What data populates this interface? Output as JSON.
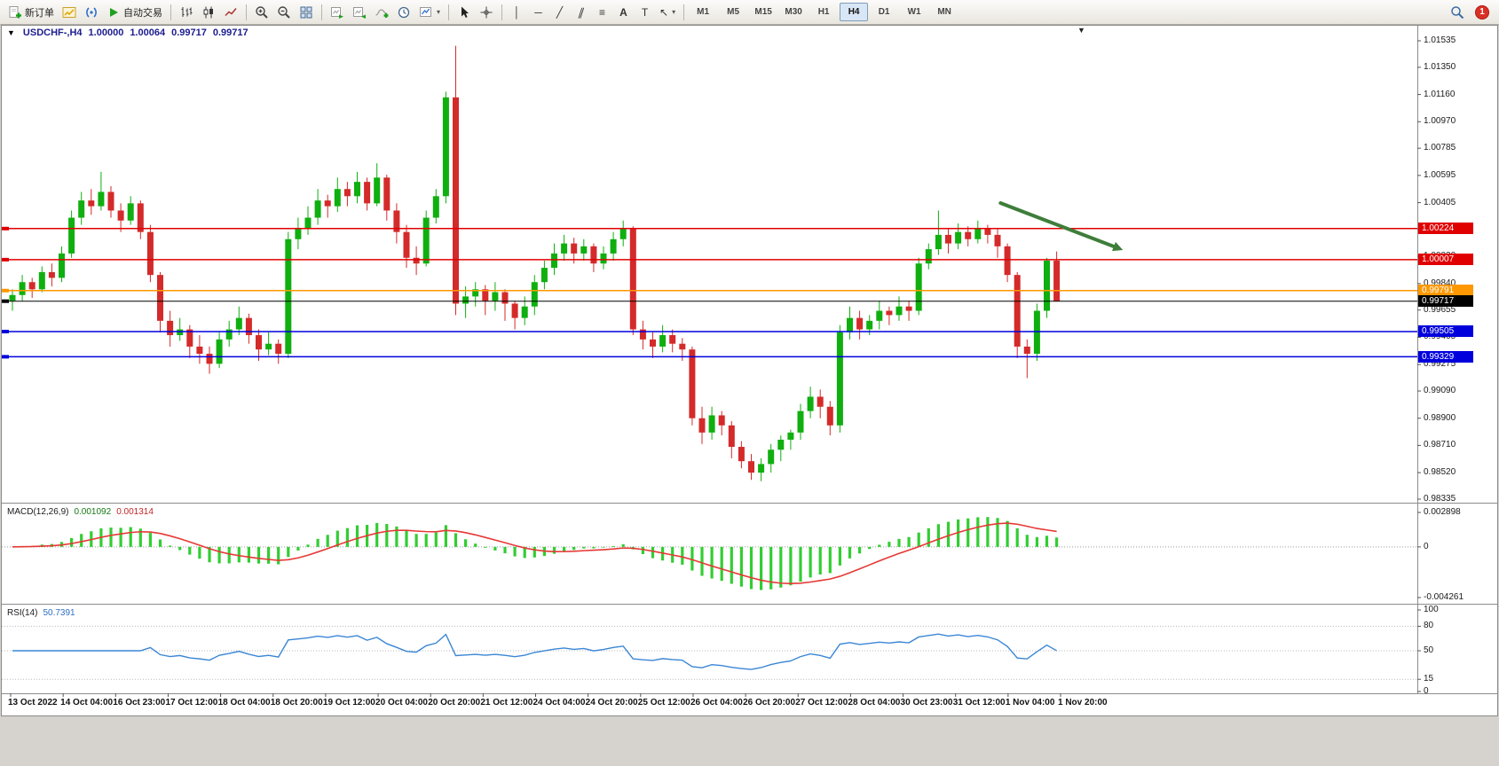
{
  "toolbar": {
    "new_order_label": "新订单",
    "auto_trading_label": "自动交易",
    "timeframes": [
      "M1",
      "M5",
      "M15",
      "M30",
      "H1",
      "H4",
      "D1",
      "W1",
      "MN"
    ],
    "active_timeframe": "H4",
    "notification_count": "1",
    "icons": [
      "new-order",
      "chart",
      "market-watch",
      "auto-trading",
      "bar-chart",
      "candlestick-chart",
      "line-chart",
      "zoom-in",
      "zoom-out",
      "tile-windows",
      "auto-scroll",
      "chart-shift",
      "indicators",
      "periods",
      "templates",
      "cursor",
      "crosshair",
      "vertical-line",
      "horizontal-line",
      "trendline",
      "equidistant-channel",
      "fibonacci",
      "text",
      "text-label",
      "arrows",
      "search",
      "notifications"
    ]
  },
  "chart": {
    "title": {
      "symbol_period": "USDCHF-,H4",
      "open": "1.00000",
      "high": "1.00064",
      "low": "0.99717",
      "close": "0.99717"
    },
    "macd_label": "MACD(12,26,9)",
    "macd_value_main": "0.001092",
    "macd_value_signal": "0.001314",
    "rsi_label": "RSI(14)",
    "rsi_value": "50.7391",
    "one_click_glyph": "▼",
    "shift_marker_glyph": "▼"
  },
  "chart_data": {
    "type": "candlestick",
    "symbol": "USDCHF-",
    "period": "H4",
    "x_labels": [
      "13 Oct 2022",
      "14 Oct 04:00",
      "16 Oct 23:00",
      "17 Oct 12:00",
      "18 Oct 04:00",
      "18 Oct 20:00",
      "19 Oct 12:00",
      "20 Oct 04:00",
      "20 Oct 20:00",
      "21 Oct 12:00",
      "24 Oct 04:00",
      "24 Oct 20:00",
      "25 Oct 12:00",
      "26 Oct 04:00",
      "26 Oct 20:00",
      "27 Oct 12:00",
      "28 Oct 04:00",
      "30 Oct 23:00",
      "31 Oct 12:00",
      "1 Nov 04:00",
      "1 Nov 20:00"
    ],
    "price_axis_ticks": [
      "1.01535",
      "1.01350",
      "1.01160",
      "1.00970",
      "1.00785",
      "1.00595",
      "1.00405",
      "1.00220",
      "1.00030",
      "0.99840",
      "0.99655",
      "0.99465",
      "0.99275",
      "0.99090",
      "0.98900",
      "0.98710",
      "0.98520",
      "0.98335"
    ],
    "ohlc": [
      [
        0.9972,
        0.998,
        0.9965,
        0.9976
      ],
      [
        0.9976,
        0.999,
        0.9972,
        0.9985
      ],
      [
        0.9985,
        0.9988,
        0.9974,
        0.998
      ],
      [
        0.998,
        0.9996,
        0.9978,
        0.9992
      ],
      [
        0.9992,
        0.9998,
        0.9982,
        0.9988
      ],
      [
        0.9988,
        1.001,
        0.9985,
        1.0005
      ],
      [
        1.0005,
        1.0035,
        1.0002,
        1.003
      ],
      [
        1.003,
        1.0048,
        1.0025,
        1.0042
      ],
      [
        1.0042,
        1.005,
        1.0032,
        1.0038
      ],
      [
        1.0038,
        1.0062,
        1.0035,
        1.0048
      ],
      [
        1.0048,
        1.0052,
        1.003,
        1.0035
      ],
      [
        1.0035,
        1.004,
        1.002,
        1.0028
      ],
      [
        1.0028,
        1.0045,
        1.0025,
        1.004
      ],
      [
        1.004,
        1.0042,
        1.0015,
        1.002
      ],
      [
        1.002,
        1.0025,
        0.9985,
        0.999
      ],
      [
        0.999,
        0.9992,
        0.995,
        0.9958
      ],
      [
        0.9958,
        0.9965,
        0.994,
        0.9948
      ],
      [
        0.9948,
        0.996,
        0.9944,
        0.9952
      ],
      [
        0.9952,
        0.9955,
        0.9932,
        0.994
      ],
      [
        0.994,
        0.9948,
        0.9928,
        0.9935
      ],
      [
        0.9935,
        0.994,
        0.9921,
        0.9928
      ],
      [
        0.9928,
        0.995,
        0.9925,
        0.9945
      ],
      [
        0.9945,
        0.9958,
        0.994,
        0.9952
      ],
      [
        0.9952,
        0.9968,
        0.9948,
        0.996
      ],
      [
        0.996,
        0.9963,
        0.9942,
        0.9948
      ],
      [
        0.9948,
        0.9952,
        0.993,
        0.9938
      ],
      [
        0.9938,
        0.995,
        0.9934,
        0.9942
      ],
      [
        0.9942,
        0.9945,
        0.9928,
        0.9935
      ],
      [
        0.9935,
        1.002,
        0.9932,
        1.0015
      ],
      [
        1.0015,
        1.003,
        1.0008,
        1.0022
      ],
      [
        1.0022,
        1.0038,
        1.0018,
        1.003
      ],
      [
        1.003,
        1.005,
        1.0025,
        1.0042
      ],
      [
        1.0042,
        1.0046,
        1.003,
        1.0038
      ],
      [
        1.0038,
        1.0058,
        1.0034,
        1.005
      ],
      [
        1.005,
        1.0055,
        1.0038,
        1.0045
      ],
      [
        1.0045,
        1.0062,
        1.004,
        1.0055
      ],
      [
        1.0055,
        1.0058,
        1.0035,
        1.004
      ],
      [
        1.004,
        1.0068,
        1.0038,
        1.0058
      ],
      [
        1.0058,
        1.006,
        1.0028,
        1.0035
      ],
      [
        1.0035,
        1.004,
        1.0012,
        1.002
      ],
      [
        1.002,
        1.0025,
        0.9995,
        1.0002
      ],
      [
        1.0002,
        1.001,
        0.999,
        0.9998
      ],
      [
        0.9998,
        1.0035,
        0.9996,
        1.003
      ],
      [
        1.003,
        1.005,
        1.0026,
        1.0045
      ],
      [
        1.0045,
        1.0118,
        1.004,
        1.0114
      ],
      [
        1.0114,
        1.015,
        0.9962,
        0.997
      ],
      [
        0.997,
        0.9982,
        0.996,
        0.9975
      ],
      [
        0.9975,
        0.9985,
        0.9968,
        0.998
      ],
      [
        0.998,
        0.9983,
        0.9962,
        0.9972
      ],
      [
        0.9972,
        0.9985,
        0.9965,
        0.9978
      ],
      [
        0.9978,
        0.998,
        0.9958,
        0.997
      ],
      [
        0.997,
        0.9972,
        0.9952,
        0.996
      ],
      [
        0.996,
        0.9975,
        0.9955,
        0.9968
      ],
      [
        0.9968,
        0.999,
        0.9962,
        0.9985
      ],
      [
        0.9985,
        1.0,
        0.998,
        0.9995
      ],
      [
        0.9995,
        1.0012,
        0.999,
        1.0005
      ],
      [
        1.0005,
        1.0018,
        1.0,
        1.0012
      ],
      [
        1.0012,
        1.0016,
        0.9998,
        1.0005
      ],
      [
        1.0005,
        1.0015,
        1.0,
        1.001
      ],
      [
        1.001,
        1.0012,
        0.9992,
        0.9998
      ],
      [
        0.9998,
        1.001,
        0.9994,
        1.0005
      ],
      [
        1.0005,
        1.002,
        1.0,
        1.0015
      ],
      [
        1.0015,
        1.0028,
        1.001,
        1.0022
      ],
      [
        1.0022,
        1.0024,
        0.9948,
        0.9952
      ],
      [
        0.9952,
        0.9958,
        0.9938,
        0.9945
      ],
      [
        0.9945,
        0.995,
        0.9932,
        0.994
      ],
      [
        0.994,
        0.9955,
        0.9936,
        0.9948
      ],
      [
        0.9948,
        0.9952,
        0.9936,
        0.9942
      ],
      [
        0.9942,
        0.9946,
        0.993,
        0.9938
      ],
      [
        0.9938,
        0.994,
        0.9885,
        0.989
      ],
      [
        0.989,
        0.9898,
        0.9872,
        0.988
      ],
      [
        0.988,
        0.9898,
        0.9875,
        0.9892
      ],
      [
        0.9892,
        0.9895,
        0.9878,
        0.9885
      ],
      [
        0.9885,
        0.9888,
        0.9862,
        0.987
      ],
      [
        0.987,
        0.9874,
        0.9855,
        0.986
      ],
      [
        0.986,
        0.9865,
        0.9847,
        0.9852
      ],
      [
        0.9852,
        0.9862,
        0.9846,
        0.9858
      ],
      [
        0.9858,
        0.9872,
        0.9852,
        0.9868
      ],
      [
        0.9868,
        0.9878,
        0.986,
        0.9875
      ],
      [
        0.9875,
        0.9882,
        0.9868,
        0.988
      ],
      [
        0.988,
        0.99,
        0.9875,
        0.9895
      ],
      [
        0.9895,
        0.9912,
        0.989,
        0.9905
      ],
      [
        0.9905,
        0.991,
        0.989,
        0.9898
      ],
      [
        0.9898,
        0.9902,
        0.9878,
        0.9885
      ],
      [
        0.9885,
        0.9955,
        0.988,
        0.995
      ],
      [
        0.995,
        0.9968,
        0.9945,
        0.996
      ],
      [
        0.996,
        0.9965,
        0.9945,
        0.9952
      ],
      [
        0.9952,
        0.9962,
        0.9948,
        0.9958
      ],
      [
        0.9958,
        0.9972,
        0.9952,
        0.9965
      ],
      [
        0.9965,
        0.9968,
        0.9955,
        0.9962
      ],
      [
        0.9962,
        0.9975,
        0.9958,
        0.9968
      ],
      [
        0.9968,
        0.9972,
        0.9958,
        0.9965
      ],
      [
        0.9965,
        1.0002,
        0.9962,
        0.9998
      ],
      [
        0.9998,
        1.0012,
        0.9994,
        1.0008
      ],
      [
        1.0008,
        1.0035,
        1.0004,
        1.0018
      ],
      [
        1.0018,
        1.0022,
        1.0005,
        1.0012
      ],
      [
        1.0012,
        1.0026,
        1.0008,
        1.002
      ],
      [
        1.002,
        1.0024,
        1.001,
        1.0015
      ],
      [
        1.0015,
        1.0028,
        1.0012,
        1.0022
      ],
      [
        1.0022,
        1.0025,
        1.0012,
        1.0018
      ],
      [
        1.0018,
        1.0022,
        1.0002,
        1.001
      ],
      [
        1.001,
        1.0012,
        0.9985,
        0.999
      ],
      [
        0.999,
        0.9992,
        0.9932,
        0.994
      ],
      [
        0.994,
        0.9945,
        0.9918,
        0.9935
      ],
      [
        0.9935,
        0.997,
        0.993,
        0.9965
      ],
      [
        0.9965,
        1.0002,
        0.996,
        1.0
      ],
      [
        1.0,
        1.00064,
        0.99717,
        0.99717
      ]
    ],
    "hlines": [
      {
        "name": "resistance-upper",
        "price": 1.00224,
        "label": "1.00224",
        "color": "#e00000"
      },
      {
        "name": "resistance-lower",
        "price": 1.00007,
        "label": "1.00007",
        "color": "#e00000"
      },
      {
        "name": "pivot-orange",
        "price": 0.99791,
        "label": "0.99791",
        "color": "#ff9800"
      },
      {
        "name": "current-price",
        "price": 0.99717,
        "label": "0.99717",
        "color": "#000000"
      },
      {
        "name": "support-upper",
        "price": 0.99505,
        "label": "0.99505",
        "color": "#0000dd"
      },
      {
        "name": "support-lower",
        "price": 0.99329,
        "label": "0.99329",
        "color": "#0000dd"
      }
    ],
    "arrow": {
      "from": {
        "bar": 100.3,
        "price": 1.00402
      },
      "to": {
        "bar": 111.8,
        "price": 1.00099
      },
      "color": "#3e7d3a"
    },
    "macd": {
      "params": [
        12,
        26,
        9
      ],
      "axis": [
        "0.002898",
        "0",
        "-0.004261"
      ],
      "range": [
        0.002898,
        -0.004261
      ]
    },
    "rsi": {
      "period": 14,
      "axis": [
        "100",
        "80",
        "50",
        "15",
        "0"
      ],
      "levels": [
        80,
        50,
        15
      ]
    },
    "colors": {
      "bull": "#0faf0f",
      "bear": "#d42a2a",
      "macd_hist": "#32cd32",
      "macd_signal": "#e53935",
      "rsi_line": "#3a86d6"
    }
  }
}
